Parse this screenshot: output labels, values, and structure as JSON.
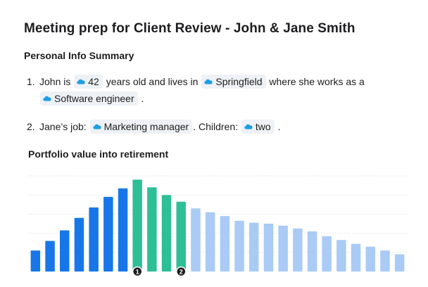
{
  "title": "Meeting prep for Client Review - John & Jane Smith",
  "section_heading": "Personal Info Summary",
  "items": [
    {
      "number": "1.",
      "t1": "John is",
      "age": "42",
      "t2": "years old and lives in",
      "city": "Springfield",
      "t3": "where she works as a",
      "job": "Software engineer",
      "t4": "."
    },
    {
      "number": "2.",
      "t1": "Jane’s job:",
      "job": "Marketing manager",
      "t2": ". Children:",
      "children": "two",
      "t3": "."
    }
  ],
  "icons": {
    "pill_icon": "salesforce-cloud-icon"
  },
  "colors": {
    "dark_blue": "#1877e8",
    "teal": "#2ebf97",
    "light_blue": "#a9cbf5",
    "pill_bg": "#eef1f5",
    "marker": "#1d1d1f"
  },
  "chart_data": {
    "type": "bar",
    "title": "Portfolio value into retirement",
    "xlabel": "",
    "ylabel": "",
    "ylim": [
      0,
      100
    ],
    "gridlines": [
      20,
      40,
      60,
      80,
      100
    ],
    "values": [
      22,
      32,
      43,
      56,
      67,
      78,
      87,
      96,
      88,
      80,
      73,
      66,
      62,
      58,
      53,
      51,
      50,
      48,
      45,
      42,
      37,
      33,
      29,
      26,
      22,
      18
    ],
    "groups": [
      "pre",
      "pre",
      "pre",
      "pre",
      "pre",
      "pre",
      "pre",
      "mid",
      "mid",
      "mid",
      "mid",
      "post",
      "post",
      "post",
      "post",
      "post",
      "post",
      "post",
      "post",
      "post",
      "post",
      "post",
      "post",
      "post",
      "post",
      "post"
    ],
    "markers": [
      {
        "label": "1",
        "index": 7
      },
      {
        "label": "2",
        "index": 10
      }
    ]
  }
}
